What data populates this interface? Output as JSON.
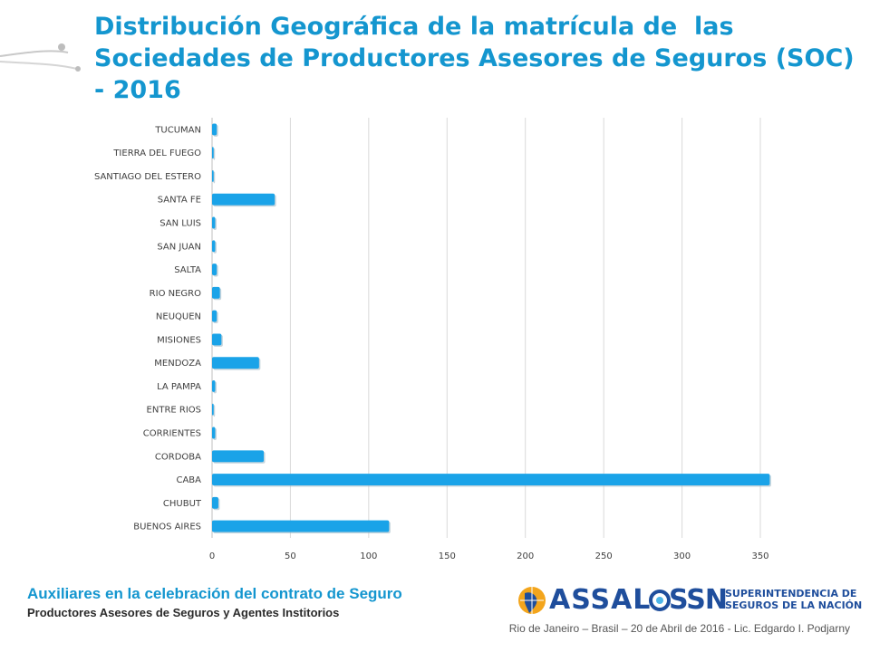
{
  "slide": {
    "title": "Distribución Geográfica de la matrícula de  las Sociedades de Productores Asesores de Seguros (SOC) - 2016",
    "footer_title": "Auxiliares en la celebración del contrato de Seguro",
    "footer_subtitle": "Productores Asesores de Seguros y Agentes Institorios",
    "footer_date": "Rio de Janeiro – Brasil – 20 de Abril de 2016 - Lic. Edgardo I. Podjarny",
    "logo_assal": "ASSAL",
    "logo_ssn": "SSN",
    "logo_ssn_full": [
      "SUPERINTENDENCIA DE",
      "SEGUROS DE LA NACIÓN"
    ]
  },
  "chart_data": {
    "type": "bar",
    "orientation": "horizontal",
    "categories": [
      "TUCUMAN",
      "TIERRA DEL FUEGO",
      "SANTIAGO DEL ESTERO",
      "SANTA FE",
      "SAN LUIS",
      "SAN JUAN",
      "SALTA",
      "RIO NEGRO",
      "NEUQUEN",
      "MISIONES",
      "MENDOZA",
      "LA PAMPA",
      "ENTRE RIOS",
      "CORRIENTES",
      "CORDOBA",
      "CABA",
      "CHUBUT",
      "BUENOS AIRES"
    ],
    "values": [
      3,
      1,
      1,
      40,
      2,
      2,
      3,
      5,
      3,
      6,
      30,
      2,
      1,
      2,
      33,
      356,
      4,
      113
    ],
    "xlim": [
      0,
      350
    ],
    "xticks": [
      0,
      50,
      100,
      150,
      200,
      250,
      300,
      350
    ],
    "title": "",
    "xlabel": "",
    "ylabel": "",
    "grid": "vertical",
    "bar_color": "#1aa3e8"
  }
}
